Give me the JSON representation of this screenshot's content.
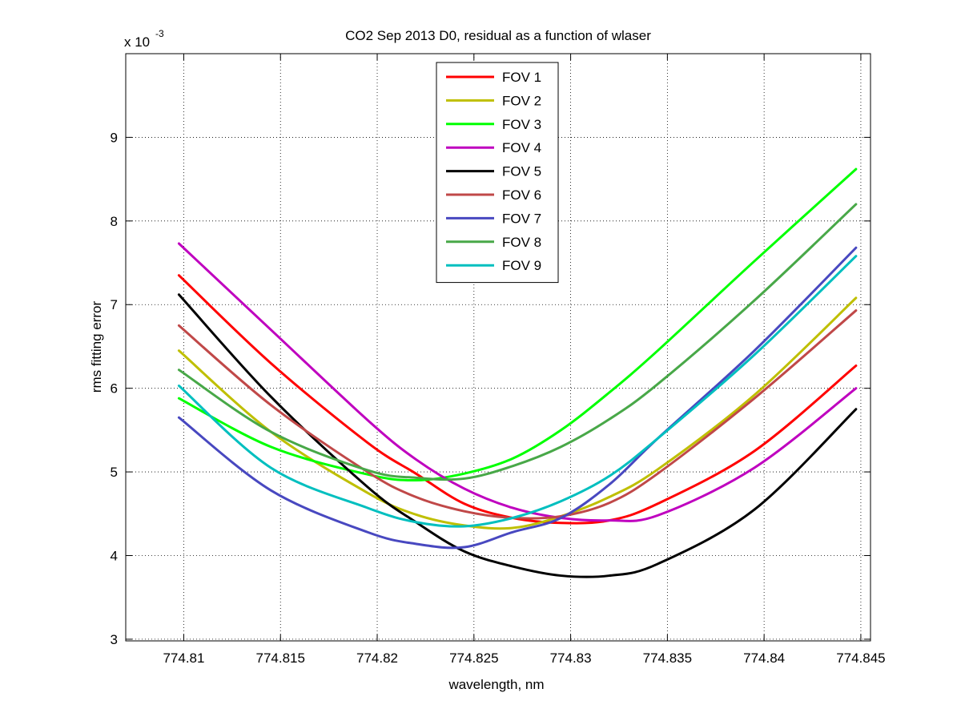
{
  "chart_data": {
    "type": "line",
    "title": "CO2 Sep 2013 D0, residual as a function of wlaser",
    "xlabel": "wavelength, nm",
    "ylabel": "rms fitting error",
    "y_exponent_label": "x 10",
    "y_exponent_power": "-3",
    "xlim": [
      774.807,
      774.8455
    ],
    "ylim": [
      2.98,
      10.0
    ],
    "x_ticks": [
      774.81,
      774.815,
      774.82,
      774.825,
      774.83,
      774.835,
      774.84,
      774.845
    ],
    "x_tick_labels": [
      "774.81",
      "774.815",
      "774.82",
      "774.825",
      "774.83",
      "774.835",
      "774.84",
      "774.845"
    ],
    "y_ticks": [
      3,
      4,
      5,
      6,
      7,
      8,
      9
    ],
    "y_tick_labels": [
      "3",
      "4",
      "5",
      "6",
      "7",
      "8",
      "9"
    ],
    "grid": true,
    "legend_position": "top-center",
    "x": [
      774.80975,
      774.8145,
      774.8195,
      774.822,
      774.8245,
      774.827,
      774.8295,
      774.832,
      774.8345,
      774.8395,
      774.84475
    ],
    "series": [
      {
        "name": "FOV 1",
        "color": "#ff0000",
        "values": [
          7.35,
          6.3,
          5.35,
          4.98,
          4.62,
          4.45,
          4.39,
          4.42,
          4.62,
          5.25,
          6.27
        ]
      },
      {
        "name": "FOV 2",
        "color": "#bfbf00",
        "values": [
          6.45,
          5.48,
          4.75,
          4.49,
          4.36,
          4.33,
          4.47,
          4.7,
          5.03,
          5.92,
          7.08
        ]
      },
      {
        "name": "FOV 3",
        "color": "#00ff00",
        "values": [
          5.88,
          5.3,
          4.97,
          4.9,
          4.98,
          5.16,
          5.5,
          5.95,
          6.45,
          7.52,
          8.62
        ]
      },
      {
        "name": "FOV 4",
        "color": "#bf00bf",
        "values": [
          7.73,
          6.7,
          5.62,
          5.15,
          4.8,
          4.57,
          4.45,
          4.42,
          4.48,
          5.05,
          6.0
        ]
      },
      {
        "name": "FOV 5",
        "color": "#000000",
        "values": [
          7.12,
          5.9,
          4.82,
          4.4,
          4.05,
          3.87,
          3.76,
          3.76,
          3.9,
          4.55,
          5.75
        ]
      },
      {
        "name": "FOV 6",
        "color": "#c04848",
        "values": [
          6.75,
          5.8,
          5.0,
          4.7,
          4.53,
          4.45,
          4.47,
          4.63,
          4.98,
          5.88,
          6.93
        ]
      },
      {
        "name": "FOV 7",
        "color": "#4848c0",
        "values": [
          5.65,
          4.78,
          4.28,
          4.14,
          4.1,
          4.28,
          4.45,
          4.85,
          5.4,
          6.45,
          7.68
        ]
      },
      {
        "name": "FOV 8",
        "color": "#48a848",
        "values": [
          6.22,
          5.48,
          5.02,
          4.93,
          4.92,
          5.07,
          5.3,
          5.63,
          6.05,
          7.05,
          8.2
        ]
      },
      {
        "name": "FOV 9",
        "color": "#00bfbf",
        "values": [
          6.03,
          5.05,
          4.57,
          4.4,
          4.35,
          4.45,
          4.65,
          4.95,
          5.4,
          6.4,
          7.58
        ]
      }
    ]
  }
}
